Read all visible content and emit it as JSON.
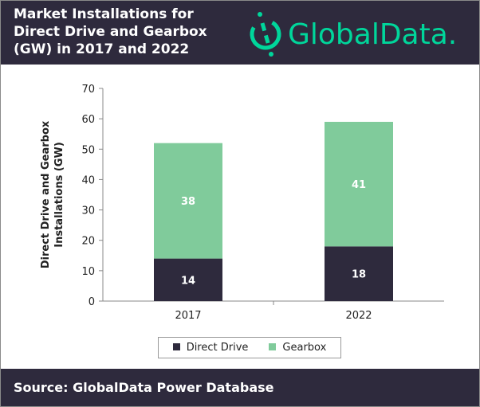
{
  "header": {
    "title": "Market Installations for Direct Drive and Gearbox (GW) in 2017 and 2022",
    "logo_text": "GlobalData."
  },
  "footer": {
    "source": "Source: GlobalData Power Database"
  },
  "colors": {
    "direct_drive": "#2e2a3d",
    "gearbox": "#80cb9b",
    "brand": "#00d69b",
    "header_bg": "#2e2a3d"
  },
  "chart_data": {
    "type": "bar",
    "stacked": true,
    "categories": [
      "2017",
      "2022"
    ],
    "series": [
      {
        "name": "Direct Drive",
        "values": [
          14,
          18
        ]
      },
      {
        "name": "Gearbox",
        "values": [
          38,
          41
        ]
      }
    ],
    "ylabel": "Direct Drive and Gearbox Installations (GW)",
    "ylim": [
      0,
      70
    ],
    "yticks": [
      0,
      10,
      20,
      30,
      40,
      50,
      60,
      70
    ],
    "grid": false,
    "legend": "bottom"
  }
}
